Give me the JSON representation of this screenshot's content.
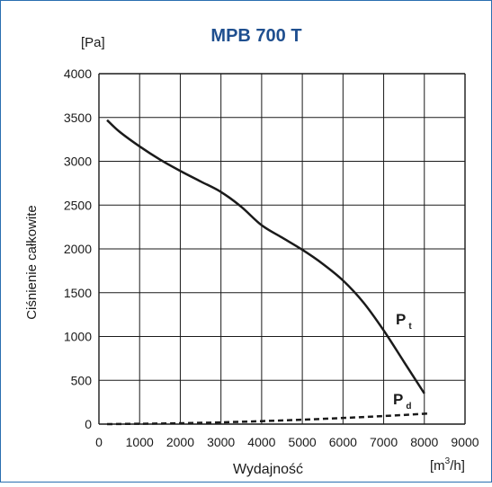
{
  "chart_data": {
    "type": "line",
    "title": "MPB 700 T",
    "ylabel": "Ciśnienie całkowite",
    "xlabel": "Wydajność",
    "y_unit": "[Pa]",
    "x_unit_base": "[m",
    "x_unit_sup": "3",
    "x_unit_tail": "/h]",
    "xlim": [
      0,
      9000
    ],
    "ylim": [
      0,
      4000
    ],
    "x_ticks": [
      0,
      1000,
      2000,
      3000,
      4000,
      5000,
      6000,
      7000,
      8000,
      9000
    ],
    "y_ticks": [
      0,
      500,
      1000,
      1500,
      2000,
      2500,
      3000,
      3500,
      4000
    ],
    "grid": true,
    "colors": {
      "title": "#1f4f8f",
      "border": "#2a6fb0",
      "line": "#1a1a1a"
    },
    "series": [
      {
        "name": "P",
        "subscript": "t",
        "style": "solid",
        "x": [
          200,
          500,
          1000,
          1500,
          2000,
          2500,
          3000,
          3500,
          4000,
          4500,
          5000,
          5500,
          6000,
          6500,
          7000,
          7500,
          8000
        ],
        "y": [
          3470,
          3340,
          3170,
          3020,
          2890,
          2770,
          2650,
          2480,
          2270,
          2130,
          1990,
          1830,
          1640,
          1390,
          1070,
          710,
          350
        ]
      },
      {
        "name": "P",
        "subscript": "d",
        "style": "dashed",
        "x": [
          200,
          1000,
          2000,
          3000,
          4000,
          5000,
          6000,
          7000,
          8000,
          8100
        ],
        "y": [
          0,
          4,
          10,
          20,
          34,
          50,
          70,
          92,
          118,
          125
        ]
      }
    ]
  }
}
